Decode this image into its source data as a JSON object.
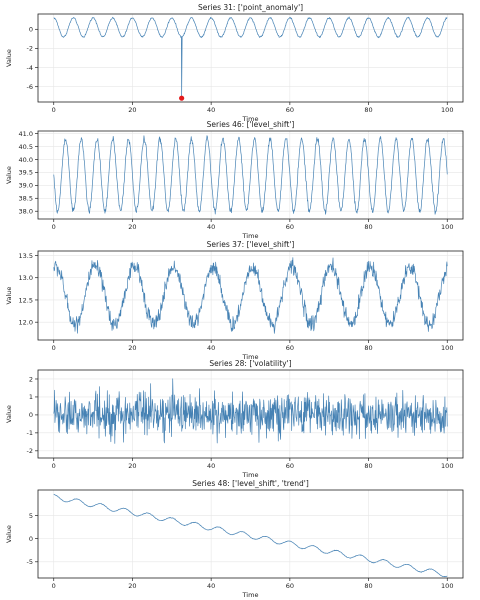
{
  "chart_data": [
    {
      "type": "line",
      "title": "Series 31: ['point_anomaly']",
      "xlabel": "Time",
      "ylabel": "Value",
      "xlim": [
        -4,
        104
      ],
      "ylim": [
        -7.6,
        1.6
      ],
      "xticks": [
        0,
        20,
        40,
        60,
        80,
        100
      ],
      "yticks": [
        0,
        -2,
        -4,
        -6
      ],
      "grid": true,
      "color": "#4682b4",
      "anomaly_color": "#e31a1c",
      "signal": {
        "kind": "sine",
        "center": 0.2,
        "amplitude": 1.0,
        "period": 5.0,
        "phase": 0.0,
        "noise": 0.06,
        "x_start": 0,
        "x_end": 100,
        "n": 1000
      },
      "anomalies": [
        {
          "x": 32.5,
          "y": -7.2
        }
      ]
    },
    {
      "type": "line",
      "title": "Series 46: ['level_shift']",
      "xlabel": "Time",
      "ylabel": "Value",
      "xlim": [
        -4,
        104
      ],
      "ylim": [
        37.7,
        41.1
      ],
      "xticks": [
        0,
        20,
        40,
        60,
        80,
        100
      ],
      "yticks": [
        38.0,
        38.5,
        39.0,
        39.5,
        40.0,
        40.5,
        41.0
      ],
      "grid": true,
      "color": "#4682b4",
      "signal": {
        "kind": "sine",
        "center": 39.4,
        "amplitude": 1.4,
        "period": 4.0,
        "phase": 1.57,
        "noise": 0.08,
        "x_start": 0,
        "x_end": 100,
        "n": 1000
      }
    },
    {
      "type": "line",
      "title": "Series 37: ['level_shift']",
      "xlabel": "Time",
      "ylabel": "Value",
      "xlim": [
        -4,
        104
      ],
      "ylim": [
        11.6,
        13.6
      ],
      "xticks": [
        0,
        20,
        40,
        60,
        80,
        100
      ],
      "yticks": [
        12.0,
        12.5,
        13.0,
        13.5
      ],
      "grid": true,
      "color": "#4682b4",
      "signal": {
        "kind": "sine",
        "center": 12.6,
        "amplitude": 0.65,
        "period": 10.0,
        "phase": -0.3,
        "noise": 0.13,
        "x_start": 0,
        "x_end": 100,
        "n": 1000
      }
    },
    {
      "type": "line",
      "title": "Series 28: ['volatility']",
      "xlabel": "Time",
      "ylabel": "Value",
      "xlim": [
        -4,
        104
      ],
      "ylim": [
        -2.4,
        2.5
      ],
      "xticks": [
        0,
        20,
        40,
        60,
        80,
        100
      ],
      "yticks": [
        -2,
        -1,
        0,
        1,
        2
      ],
      "grid": true,
      "color": "#4682b4",
      "signal": {
        "kind": "noise",
        "center": 0.0,
        "amplitude": 0.0,
        "period": 10.0,
        "phase": 0.0,
        "noise": 0.7,
        "x_start": 0,
        "x_end": 100,
        "n": 1000
      }
    },
    {
      "type": "line",
      "title": "Series 48: ['level_shift', 'trend']",
      "xlabel": "Time",
      "ylabel": "Value",
      "xlim": [
        -4,
        104
      ],
      "ylim": [
        -8.5,
        10.5
      ],
      "xticks": [
        0,
        20,
        40,
        60,
        80,
        100
      ],
      "yticks": [
        -5,
        0,
        5
      ],
      "grid": true,
      "color": "#4682b4",
      "signal": {
        "kind": "trend",
        "start": 9.0,
        "end": -7.8,
        "amplitude": 0.55,
        "period": 6.0,
        "phase": 0.0,
        "noise": 0.05,
        "x_start": 0,
        "x_end": 100,
        "n": 1000
      }
    }
  ]
}
